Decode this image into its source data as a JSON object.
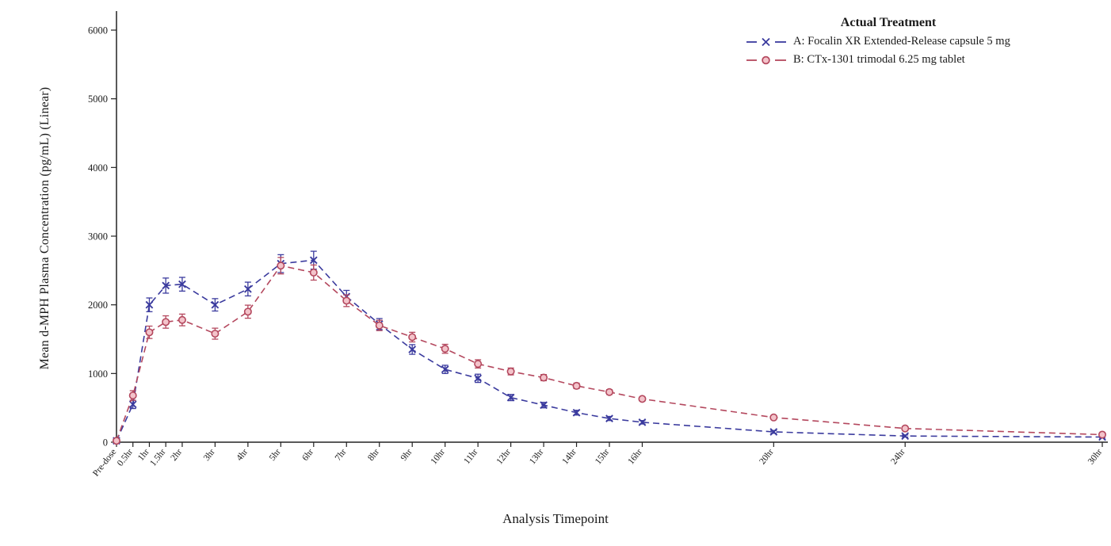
{
  "chart_data": {
    "type": "line",
    "title": "",
    "xlabel": "Analysis Timepoint",
    "ylabel": "Mean d-MPH Plasma Concentration (pg/mL) (Linear)",
    "ylim": [
      0,
      6000
    ],
    "y_ticks": [
      0,
      1000,
      2000,
      3000,
      4000,
      5000,
      6000
    ],
    "grid": false,
    "legend_title": "Actual Treatment",
    "legend_position": "top-right-inside",
    "categories": [
      "Pre-dose",
      "0.5hr",
      "1hr",
      "1.5hr",
      "2hr",
      "3hr",
      "4hr",
      "5hr",
      "6hr",
      "7hr",
      "8hr",
      "9hr",
      "10hr",
      "11hr",
      "12hr",
      "13hr",
      "14hr",
      "15hr",
      "16hr",
      "20hr",
      "24hr",
      "30hr"
    ],
    "x_hours": [
      0,
      0.5,
      1,
      1.5,
      2,
      3,
      4,
      5,
      6,
      7,
      8,
      9,
      10,
      11,
      12,
      13,
      14,
      15,
      16,
      20,
      24,
      30
    ],
    "series": [
      {
        "name": "A: Focalin XR Extended-Release capsule 5 mg",
        "marker": "x",
        "color": "#3b3b9e",
        "line_style": "dashed",
        "values": [
          20,
          550,
          2000,
          2280,
          2300,
          2000,
          2230,
          2600,
          2650,
          2120,
          1720,
          1350,
          1060,
          930,
          650,
          540,
          430,
          345,
          290,
          150,
          90,
          75
        ],
        "errors": [
          15,
          60,
          100,
          110,
          100,
          90,
          100,
          130,
          130,
          90,
          80,
          70,
          60,
          60,
          45,
          40,
          35,
          30,
          25,
          20,
          15,
          15
        ]
      },
      {
        "name": "B: CTx-1301 trimodal 6.25 mg tablet",
        "marker": "circle",
        "color": "#b4485e",
        "marker_fill": "#f3c3ca",
        "line_style": "dashed",
        "values": [
          20,
          680,
          1600,
          1750,
          1780,
          1580,
          1900,
          2570,
          2470,
          2060,
          1700,
          1530,
          1360,
          1140,
          1030,
          940,
          820,
          730,
          630,
          360,
          200,
          110
        ],
        "errors": [
          15,
          70,
          90,
          90,
          85,
          80,
          95,
          120,
          110,
          85,
          75,
          70,
          65,
          60,
          50,
          45,
          40,
          35,
          30,
          25,
          20,
          15
        ]
      }
    ]
  }
}
